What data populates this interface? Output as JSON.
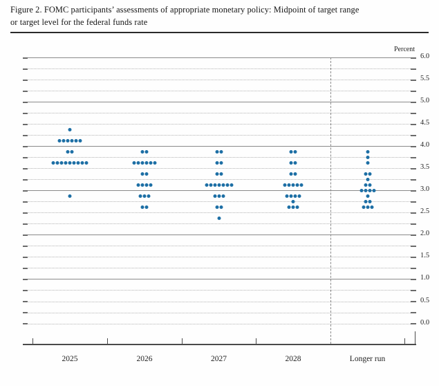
{
  "figure": {
    "title_line1": "Figure 2. FOMC participants’ assessments of appropriate monetary policy: Midpoint of target range",
    "title_line2": "or target level for the federal funds rate"
  },
  "chart_data": {
    "type": "scatter",
    "title": "Figure 2. FOMC participants’ assessments of appropriate monetary policy: Midpoint of target range or target level for the federal funds rate",
    "unit_label": "Percent",
    "ylabel": "Percent",
    "ylim": [
      0.0,
      6.0
    ],
    "grid_interval": 0.25,
    "labeled_tick_interval": 0.5,
    "ytick_labels": [
      "0.0",
      "0.5",
      "1.0",
      "1.5",
      "2.0",
      "2.5",
      "3.0",
      "3.5",
      "4.0",
      "4.5",
      "5.0",
      "5.5",
      "6.0"
    ],
    "categories": [
      "2025",
      "2026",
      "2027",
      "2028",
      "Longer run"
    ],
    "separator_before_category": "Longer run",
    "dot_color": "#1d6fa5",
    "dot_meaning": "one dot = one FOMC participant's projection of the midpoint of the appropriate target range or target level for the federal funds rate",
    "series": [
      {
        "name": "2025",
        "dots": [
          {
            "rate": 4.375,
            "count": 1
          },
          {
            "rate": 4.125,
            "count": 6
          },
          {
            "rate": 3.875,
            "count": 2
          },
          {
            "rate": 3.625,
            "count": 9
          },
          {
            "rate": 2.875,
            "count": 1
          }
        ]
      },
      {
        "name": "2026",
        "dots": [
          {
            "rate": 3.875,
            "count": 2
          },
          {
            "rate": 3.625,
            "count": 6
          },
          {
            "rate": 3.375,
            "count": 2
          },
          {
            "rate": 3.125,
            "count": 4
          },
          {
            "rate": 2.875,
            "count": 3
          },
          {
            "rate": 2.625,
            "count": 2
          }
        ]
      },
      {
        "name": "2027",
        "dots": [
          {
            "rate": 3.875,
            "count": 2
          },
          {
            "rate": 3.625,
            "count": 2
          },
          {
            "rate": 3.375,
            "count": 2
          },
          {
            "rate": 3.125,
            "count": 7
          },
          {
            "rate": 2.875,
            "count": 3
          },
          {
            "rate": 2.625,
            "count": 2
          },
          {
            "rate": 2.375,
            "count": 1
          }
        ]
      },
      {
        "name": "2028",
        "dots": [
          {
            "rate": 3.875,
            "count": 2
          },
          {
            "rate": 3.625,
            "count": 2
          },
          {
            "rate": 3.375,
            "count": 2
          },
          {
            "rate": 3.125,
            "count": 5
          },
          {
            "rate": 2.875,
            "count": 4
          },
          {
            "rate": 2.75,
            "count": 1
          },
          {
            "rate": 2.625,
            "count": 3
          }
        ]
      },
      {
        "name": "Longer run",
        "dots": [
          {
            "rate": 3.875,
            "count": 1
          },
          {
            "rate": 3.75,
            "count": 1
          },
          {
            "rate": 3.625,
            "count": 1
          },
          {
            "rate": 3.375,
            "count": 2
          },
          {
            "rate": 3.25,
            "count": 1
          },
          {
            "rate": 3.125,
            "count": 2
          },
          {
            "rate": 3.0,
            "count": 4
          },
          {
            "rate": 2.875,
            "count": 1
          },
          {
            "rate": 2.75,
            "count": 2
          },
          {
            "rate": 2.625,
            "count": 3
          }
        ]
      }
    ]
  }
}
